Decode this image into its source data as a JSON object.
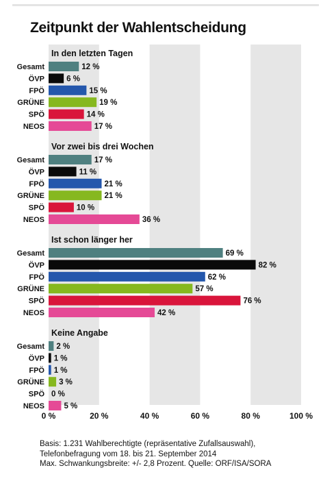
{
  "title": "Zeitpunkt der Wahlentscheidung",
  "colors": {
    "background": "#ffffff",
    "band": "#e6e6e6",
    "Gesamt": "#4f8080",
    "ÖVP": "#0a0a0a",
    "FPÖ": "#2457ac",
    "GRÜNE": "#86b81f",
    "SPÖ": "#d9153b",
    "NEOS": "#e54a96"
  },
  "chart_data": {
    "type": "bar",
    "orientation": "horizontal",
    "categories": [
      "Gesamt",
      "ÖVP",
      "FPÖ",
      "GRÜNE",
      "SPÖ",
      "NEOS"
    ],
    "groups": [
      {
        "title": "In den letzten Tagen",
        "values": [
          12,
          6,
          15,
          19,
          14,
          17
        ],
        "labels": [
          "12 %",
          "6 %",
          "15 %",
          "19 %",
          "14 %",
          "17 %"
        ]
      },
      {
        "title": "Vor zwei bis drei Wochen",
        "values": [
          17,
          11,
          21,
          21,
          10,
          36
        ],
        "labels": [
          "17 %",
          "11 %",
          "21 %",
          "21 %",
          "10 %",
          "36 %"
        ]
      },
      {
        "title": "Ist schon länger her",
        "values": [
          69,
          82,
          62,
          57,
          76,
          42
        ],
        "labels": [
          "69 %",
          "82 %",
          "62 %",
          "57 %",
          "76 %",
          "42 %"
        ]
      },
      {
        "title": "Keine Angabe",
        "values": [
          2,
          1,
          1,
          3,
          0,
          5
        ],
        "labels": [
          "2 %",
          "1 %",
          "1 %",
          "3 %",
          "0 %",
          "5 %"
        ]
      }
    ],
    "xlim": [
      0,
      100
    ],
    "x_ticks": [
      0,
      20,
      40,
      60,
      80,
      100
    ],
    "x_tick_labels": [
      "0 %",
      "20 %",
      "40 %",
      "60 %",
      "80 %",
      "100 %"
    ],
    "grid": "alternating-bands"
  },
  "footnote": {
    "line1": "Basis: 1.231 Wahlberechtigte (repräsentative Zufallsauswahl),",
    "line2": "Telefonbefragung vom 18. bis 21. September 2014",
    "line3": "Max. Schwankungsbreite: +/- 2,8 Prozent. Quelle: ORF/ISA/SORA"
  }
}
